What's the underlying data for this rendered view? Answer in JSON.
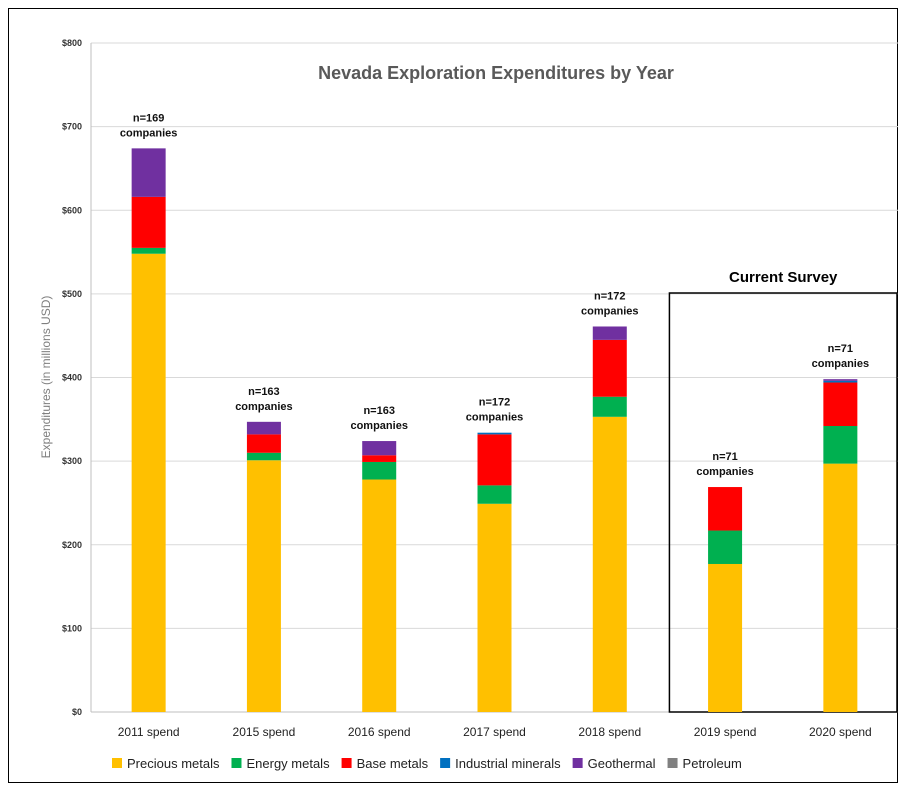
{
  "chart_data": {
    "type": "bar",
    "stacked": true,
    "title": "Nevada Exploration Expenditures by Year",
    "ylabel": "Expenditures (in millions USD)",
    "xlabel": "",
    "ylim": [
      0,
      800
    ],
    "yticks": [
      "$0",
      "$100",
      "$200",
      "$300",
      "$400",
      "$500",
      "$600",
      "$700",
      "$800"
    ],
    "grid": true,
    "legend_position": "bottom",
    "categories": [
      "2011 spend",
      "2015 spend",
      "2016 spend",
      "2017 spend",
      "2018 spend",
      "2019 spend",
      "2020 spend"
    ],
    "annotations": [
      [
        "n=169",
        "companies"
      ],
      [
        "n=163",
        "companies"
      ],
      [
        "n=163",
        "companies"
      ],
      [
        "n=172",
        "companies"
      ],
      [
        "n=172",
        "companies"
      ],
      [
        "n=71",
        "companies"
      ],
      [
        "n=71",
        "companies"
      ]
    ],
    "series": [
      {
        "name": "Precious metals",
        "color": "#FFC000",
        "values": [
          548,
          301,
          278,
          249,
          353,
          177,
          297
        ]
      },
      {
        "name": "Energy metals",
        "color": "#00B050",
        "values": [
          7,
          9,
          21,
          22,
          24,
          40,
          45
        ]
      },
      {
        "name": "Base metals",
        "color": "#FF0000",
        "values": [
          61,
          22,
          8,
          61,
          68,
          52,
          52
        ]
      },
      {
        "name": "Industrial minerals",
        "color": "#0070C0",
        "values": [
          0,
          0,
          0,
          2,
          0,
          0,
          2
        ]
      },
      {
        "name": "Geothermal",
        "color": "#7030A0",
        "values": [
          58,
          15,
          17,
          0,
          16,
          0,
          2
        ]
      },
      {
        "name": "Petroleum",
        "color": "#808080",
        "values": [
          0,
          0,
          0,
          0,
          0,
          0,
          0
        ]
      }
    ],
    "highlight_box": {
      "label": "Current Survey",
      "categories": [
        "2019 spend",
        "2020 spend"
      ]
    }
  }
}
